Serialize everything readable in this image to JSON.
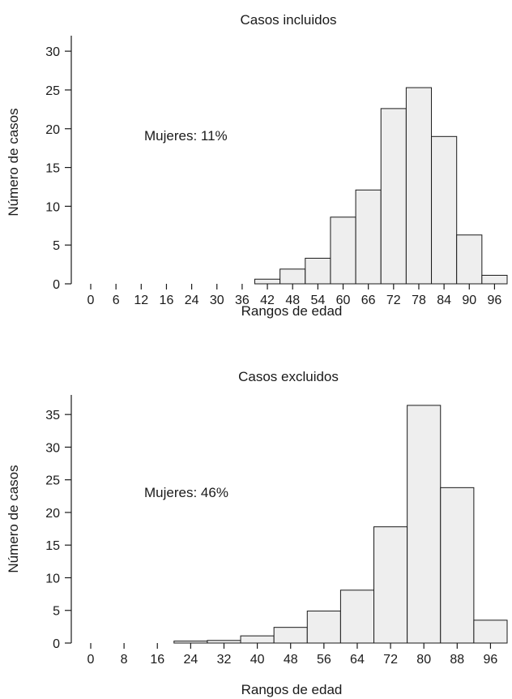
{
  "chart_data": [
    {
      "type": "bar",
      "title": "Casos incluidos",
      "xlabel": "Rangos de edad",
      "ylabel": "Número de casos",
      "annotation": "Mujeres: 11%",
      "ylim": [
        0,
        32
      ],
      "yticks": [
        0,
        5,
        10,
        15,
        20,
        25,
        30
      ],
      "categories": [
        "0",
        "6",
        "12",
        "16",
        "24",
        "30",
        "36",
        "42",
        "48",
        "54",
        "60",
        "66",
        "72",
        "78",
        "84",
        "90",
        "96"
      ],
      "values": [
        0,
        0,
        0,
        0,
        0,
        0,
        0,
        0.6,
        1.9,
        3.3,
        8.6,
        12.1,
        22.6,
        25.3,
        19.0,
        6.3,
        1.1
      ],
      "grid": false,
      "bar_color": "#eeeeee"
    },
    {
      "type": "bar",
      "title": "Casos excluidos",
      "xlabel": "Rangos de edad",
      "ylabel": "Número de casos",
      "annotation": "Mujeres: 46%",
      "ylim": [
        0,
        38
      ],
      "yticks": [
        0,
        5,
        10,
        15,
        20,
        25,
        30,
        35
      ],
      "categories": [
        "0",
        "8",
        "16",
        "24",
        "32",
        "40",
        "48",
        "56",
        "64",
        "72",
        "80",
        "88",
        "96"
      ],
      "values": [
        0,
        0,
        0,
        0.3,
        0.4,
        1.1,
        2.4,
        4.9,
        8.1,
        17.8,
        36.4,
        23.8,
        3.5
      ],
      "grid": false,
      "bar_color": "#eeeeee"
    }
  ]
}
